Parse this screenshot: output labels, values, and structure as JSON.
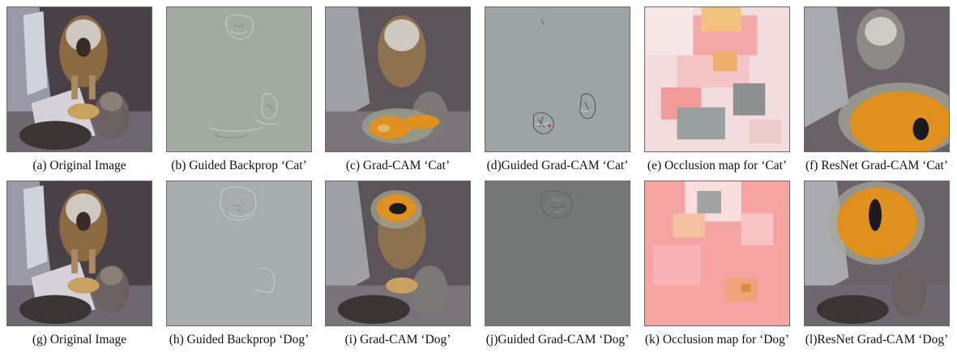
{
  "figure": {
    "panels": [
      {
        "caption": "(a) Original Image",
        "kind": "original"
      },
      {
        "caption": "(b) Guided Backprop ‘Cat’",
        "kind": "guided-backprop"
      },
      {
        "caption": "(c) Grad-CAM ‘Cat’",
        "kind": "gradcam"
      },
      {
        "caption": "(d)Guided Grad-CAM ‘Cat’",
        "kind": "guided-gradcam"
      },
      {
        "caption": "(e) Occlusion map for ‘Cat’",
        "kind": "occlusion"
      },
      {
        "caption": "(f) ResNet Grad-CAM ‘Cat’",
        "kind": "resnet-gradcam"
      },
      {
        "caption": "(g) Original Image",
        "kind": "original"
      },
      {
        "caption": "(h) Guided Backprop ‘Dog’",
        "kind": "guided-backprop"
      },
      {
        "caption": "(i) Grad-CAM ‘Dog’",
        "kind": "gradcam"
      },
      {
        "caption": "(j)Guided Grad-CAM ‘Dog’",
        "kind": "guided-gradcam"
      },
      {
        "caption": "(k) Occlusion map for ‘Dog’",
        "kind": "occlusion"
      },
      {
        "caption": "(l)ResNet Grad-CAM ‘Dog’",
        "kind": "resnet-gradcam"
      }
    ],
    "colors": {
      "heatmap": "#e0901c",
      "heatmap_core": "#1a1a1a",
      "occlusion_pink": "#f6a3a3",
      "guided_gray": "#9aa29c"
    }
  }
}
